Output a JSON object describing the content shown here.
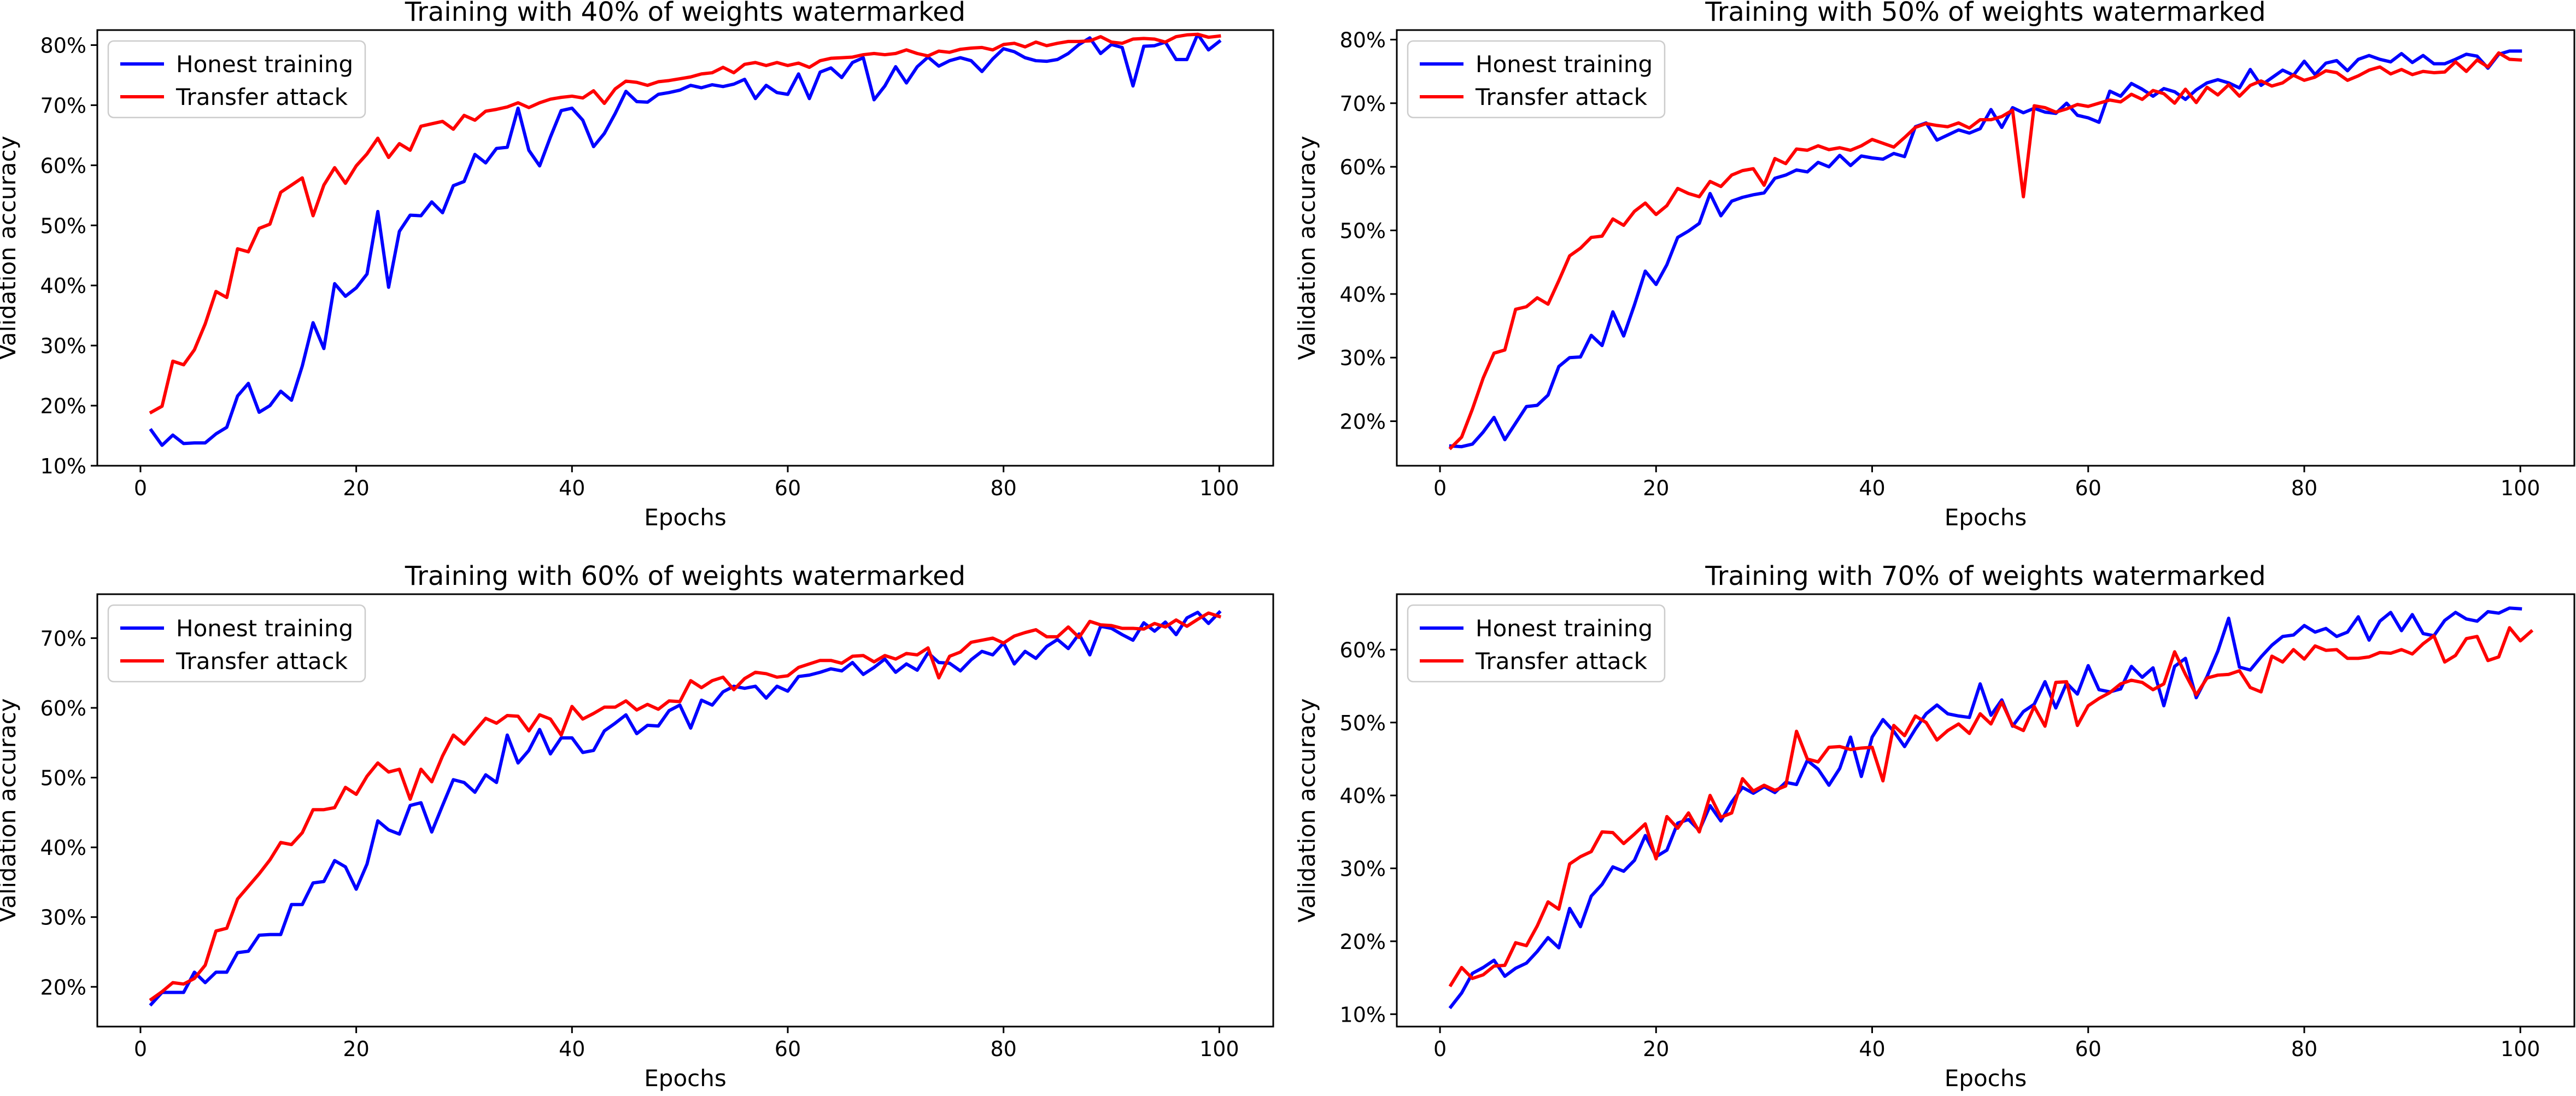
{
  "chart_data": [
    {
      "type": "line",
      "title": "Training with 40% of weights watermarked",
      "xlabel": "Epochs",
      "ylabel": "Validation accuracy",
      "xlim": [
        -4,
        105
      ],
      "ylim": [
        10,
        82.5
      ],
      "xticks": [
        0,
        20,
        40,
        60,
        80,
        100
      ],
      "xtick_labels": [
        "0",
        "20",
        "40",
        "60",
        "80",
        "100"
      ],
      "yticks": [
        10,
        20,
        30,
        40,
        50,
        60,
        70,
        80
      ],
      "ytick_labels": [
        "10%",
        "20%",
        "30%",
        "40%",
        "50%",
        "60%",
        "70%",
        "80%"
      ],
      "grid": false,
      "legend_position": "upper-left",
      "x_start": 1,
      "series": [
        {
          "name": "Honest training",
          "color": "#0000ff",
          "values": [
            15.9,
            13.4,
            15.1,
            13.7,
            13.8,
            13.8,
            15.3,
            16.4,
            21.6,
            23.7,
            18.9,
            20.0,
            22.4,
            20.9,
            26.6,
            33.8,
            29.5,
            40.3,
            38.2,
            39.6,
            41.9,
            52.3,
            39.7,
            49.0,
            51.7,
            51.6,
            53.9,
            52.1,
            56.6,
            57.3,
            61.8,
            60.4,
            62.8,
            63.0,
            69.5,
            62.5,
            59.9,
            64.7,
            69.1,
            69.5,
            67.5,
            63.1,
            65.3,
            68.6,
            72.3,
            70.6,
            70.5,
            71.8,
            72.1,
            72.5,
            73.3,
            72.9,
            73.4,
            73.1,
            73.5,
            74.3,
            71.1,
            73.3,
            72.1,
            71.8,
            75.2,
            71.1,
            75.5,
            76.2,
            74.6,
            77.1,
            77.9,
            70.9,
            73.2,
            76.4,
            73.7,
            76.4,
            78.0,
            76.5,
            77.4,
            77.9,
            77.4,
            75.6,
            77.7,
            79.4,
            78.9,
            77.9,
            77.4,
            77.3,
            77.6,
            78.6,
            80.1,
            81.2,
            78.6,
            80.1,
            79.6,
            73.2,
            79.8,
            79.9,
            80.5,
            77.6,
            77.6,
            81.8,
            79.2,
            80.6
          ]
        },
        {
          "name": "Transfer attack",
          "color": "#ff0000",
          "values": [
            18.9,
            19.9,
            27.4,
            26.8,
            29.3,
            33.6,
            39.0,
            38.0,
            46.1,
            45.6,
            49.5,
            50.2,
            55.5,
            56.7,
            57.9,
            51.6,
            56.7,
            59.6,
            57.0,
            59.9,
            61.9,
            64.5,
            61.3,
            63.6,
            62.5,
            66.5,
            66.9,
            67.3,
            66.0,
            68.3,
            67.5,
            69.0,
            69.3,
            69.7,
            70.4,
            69.6,
            70.4,
            71.0,
            71.3,
            71.5,
            71.2,
            72.4,
            70.3,
            72.7,
            74.0,
            73.8,
            73.3,
            73.9,
            74.1,
            74.4,
            74.7,
            75.2,
            75.4,
            76.3,
            75.4,
            76.8,
            77.1,
            76.6,
            77.1,
            76.6,
            77.0,
            76.3,
            77.4,
            77.8,
            77.9,
            78.0,
            78.4,
            78.6,
            78.4,
            78.6,
            79.2,
            78.6,
            78.2,
            79.0,
            78.8,
            79.3,
            79.5,
            79.6,
            79.2,
            80.1,
            80.3,
            79.7,
            80.5,
            79.9,
            80.3,
            80.6,
            80.6,
            80.7,
            81.4,
            80.5,
            80.3,
            81.0,
            81.1,
            81.0,
            80.5,
            81.4,
            81.7,
            81.8,
            81.3,
            81.5
          ]
        }
      ]
    },
    {
      "type": "line",
      "title": "Training with 50% of weights watermarked",
      "xlabel": "Epochs",
      "ylabel": "Validation accuracy",
      "xlim": [
        -4,
        105
      ],
      "ylim": [
        13,
        81.5
      ],
      "xticks": [
        0,
        20,
        40,
        60,
        80,
        100
      ],
      "xtick_labels": [
        "0",
        "20",
        "40",
        "60",
        "80",
        "100"
      ],
      "yticks": [
        20,
        30,
        40,
        50,
        60,
        70,
        80
      ],
      "ytick_labels": [
        "20%",
        "30%",
        "40%",
        "50%",
        "60%",
        "70%",
        "80%"
      ],
      "grid": false,
      "legend_position": "upper-left",
      "x_start": 1,
      "series": [
        {
          "name": "Honest training",
          "color": "#0000ff",
          "values": [
            16.1,
            16.0,
            16.4,
            18.3,
            20.6,
            17.1,
            19.7,
            22.3,
            22.5,
            24.1,
            28.6,
            30.0,
            30.1,
            33.5,
            31.9,
            37.2,
            33.4,
            38.3,
            43.6,
            41.5,
            44.6,
            48.9,
            49.9,
            51.1,
            55.8,
            52.3,
            54.6,
            55.2,
            55.6,
            55.9,
            58.2,
            58.7,
            59.5,
            59.2,
            60.7,
            60.0,
            61.8,
            60.2,
            61.7,
            61.4,
            61.2,
            62.1,
            61.6,
            66.3,
            66.9,
            64.2,
            65.0,
            65.8,
            65.3,
            66.0,
            69.0,
            66.2,
            69.3,
            68.5,
            69.2,
            68.6,
            68.4,
            70.0,
            68.1,
            67.7,
            67.0,
            71.9,
            71.1,
            73.1,
            72.2,
            71.1,
            72.3,
            71.8,
            70.6,
            72.1,
            73.2,
            73.7,
            73.2,
            72.4,
            75.3,
            72.8,
            74.0,
            75.2,
            74.4,
            76.6,
            74.5,
            76.3,
            76.7,
            75.1,
            76.9,
            77.5,
            76.9,
            76.5,
            77.8,
            76.4,
            77.5,
            76.2,
            76.2,
            76.9,
            77.7,
            77.4,
            75.5,
            77.7,
            78.2,
            78.2
          ]
        },
        {
          "name": "Transfer attack",
          "color": "#ff0000",
          "values": [
            15.8,
            17.5,
            21.9,
            26.8,
            30.7,
            31.2,
            37.6,
            38.0,
            39.4,
            38.4,
            42.1,
            46.0,
            47.2,
            48.9,
            49.1,
            51.8,
            50.8,
            53.0,
            54.3,
            52.5,
            53.9,
            56.6,
            55.8,
            55.3,
            57.7,
            56.9,
            58.7,
            59.4,
            59.7,
            57.1,
            61.3,
            60.5,
            62.8,
            62.6,
            63.3,
            62.7,
            63.0,
            62.6,
            63.3,
            64.3,
            63.7,
            63.1,
            64.6,
            66.2,
            66.8,
            66.5,
            66.3,
            66.9,
            66.1,
            67.4,
            67.4,
            67.9,
            68.9,
            55.3,
            69.6,
            69.3,
            68.6,
            69.1,
            69.8,
            69.5,
            70.0,
            70.5,
            70.2,
            71.4,
            70.6,
            72.0,
            71.5,
            70.0,
            72.2,
            70.1,
            72.5,
            71.3,
            72.9,
            71.1,
            72.8,
            73.5,
            72.7,
            73.2,
            74.4,
            73.6,
            74.1,
            75.1,
            74.8,
            73.6,
            74.3,
            75.2,
            75.7,
            74.6,
            75.3,
            74.5,
            75.0,
            74.8,
            74.9,
            76.5,
            75.0,
            76.8,
            75.7,
            77.9,
            76.9,
            76.8
          ]
        }
      ]
    },
    {
      "type": "line",
      "title": "Training with 60% of weights watermarked",
      "xlabel": "Epochs",
      "ylabel": "Validation accuracy",
      "xlim": [
        -4,
        105
      ],
      "ylim": [
        14.3,
        76.3
      ],
      "xticks": [
        0,
        20,
        40,
        60,
        80,
        100
      ],
      "xtick_labels": [
        "0",
        "20",
        "40",
        "60",
        "80",
        "100"
      ],
      "yticks": [
        20,
        30,
        40,
        50,
        60,
        70
      ],
      "ytick_labels": [
        "20%",
        "30%",
        "40%",
        "50%",
        "60%",
        "70%"
      ],
      "grid": false,
      "legend_position": "upper-left",
      "x_start": 1,
      "series": [
        {
          "name": "Honest training",
          "color": "#0000ff",
          "values": [
            17.5,
            19.2,
            19.2,
            19.2,
            22.1,
            20.6,
            22.1,
            22.1,
            24.9,
            25.1,
            27.4,
            27.5,
            27.5,
            31.8,
            31.8,
            34.9,
            35.1,
            38.1,
            37.2,
            34.0,
            37.6,
            43.8,
            42.5,
            41.9,
            46.0,
            46.4,
            42.2,
            46.0,
            49.7,
            49.3,
            47.9,
            50.4,
            49.3,
            56.1,
            52.1,
            53.9,
            56.9,
            53.4,
            55.7,
            55.7,
            53.6,
            53.9,
            56.7,
            57.8,
            59.0,
            56.3,
            57.5,
            57.4,
            59.6,
            60.4,
            57.1,
            61.1,
            60.4,
            62.3,
            63.1,
            62.8,
            63.1,
            61.4,
            63.1,
            62.4,
            64.5,
            64.7,
            65.1,
            65.6,
            65.3,
            66.5,
            64.8,
            65.8,
            67.0,
            65.1,
            66.3,
            65.4,
            67.9,
            66.5,
            66.4,
            65.3,
            66.9,
            68.1,
            67.6,
            69.3,
            66.3,
            68.1,
            67.1,
            68.8,
            69.8,
            68.5,
            70.6,
            67.6,
            71.7,
            71.4,
            70.5,
            69.7,
            72.2,
            71.0,
            72.3,
            70.5,
            72.9,
            73.7,
            72.1,
            73.7
          ]
        },
        {
          "name": "Transfer attack",
          "color": "#ff0000",
          "values": [
            18.2,
            19.3,
            20.6,
            20.4,
            21.2,
            23.1,
            28.0,
            28.4,
            32.6,
            34.4,
            36.2,
            38.2,
            40.7,
            40.4,
            42.1,
            45.4,
            45.4,
            45.7,
            48.6,
            47.6,
            50.2,
            52.1,
            50.8,
            51.2,
            46.9,
            51.2,
            49.4,
            53.1,
            56.1,
            54.8,
            56.7,
            58.5,
            57.8,
            58.9,
            58.8,
            56.7,
            59.0,
            58.4,
            56.1,
            60.2,
            58.4,
            59.2,
            60.1,
            60.1,
            61.0,
            59.7,
            60.5,
            59.8,
            61.0,
            60.9,
            63.9,
            62.9,
            63.9,
            64.4,
            62.6,
            64.2,
            65.1,
            64.9,
            64.4,
            64.6,
            65.8,
            66.3,
            66.8,
            66.8,
            66.4,
            67.4,
            67.5,
            66.6,
            67.5,
            67.0,
            67.8,
            67.6,
            68.6,
            64.3,
            67.4,
            68.0,
            69.4,
            69.7,
            70.0,
            69.3,
            70.3,
            70.8,
            71.2,
            70.2,
            70.2,
            71.6,
            70.1,
            72.4,
            71.9,
            71.8,
            71.4,
            71.4,
            71.3,
            72.1,
            71.6,
            72.6,
            71.7,
            72.7,
            73.6,
            73.1
          ]
        }
      ]
    },
    {
      "type": "line",
      "title": "Training with 70% of weights watermarked",
      "xlabel": "Epochs",
      "ylabel": "Validation accuracy",
      "xlim": [
        -4,
        105
      ],
      "ylim": [
        8.3,
        67.6
      ],
      "xticks": [
        0,
        20,
        40,
        60,
        80,
        100
      ],
      "xtick_labels": [
        "0",
        "20",
        "40",
        "60",
        "80",
        "100"
      ],
      "yticks": [
        10,
        20,
        30,
        40,
        50,
        60
      ],
      "ytick_labels": [
        "10%",
        "20%",
        "30%",
        "40%",
        "50%",
        "60%"
      ],
      "grid": false,
      "legend_position": "upper-left",
      "x_start": 1,
      "series": [
        {
          "name": "Honest training",
          "color": "#0000ff",
          "values": [
            11.0,
            12.9,
            15.6,
            16.4,
            17.4,
            15.2,
            16.3,
            17.0,
            18.6,
            20.5,
            19.1,
            24.5,
            22.0,
            26.2,
            27.8,
            30.2,
            29.6,
            31.1,
            34.5,
            31.6,
            32.5,
            36.2,
            36.7,
            35.2,
            38.6,
            36.5,
            39.1,
            41.1,
            40.3,
            41.2,
            40.4,
            41.8,
            41.5,
            44.8,
            43.6,
            41.4,
            43.7,
            48.0,
            42.6,
            48.0,
            50.4,
            48.8,
            46.7,
            49.1,
            51.2,
            52.4,
            51.2,
            50.9,
            50.7,
            55.3,
            51.0,
            53.1,
            49.5,
            51.5,
            52.5,
            55.6,
            52.0,
            55.4,
            53.9,
            57.8,
            54.5,
            54.2,
            54.6,
            57.7,
            56.2,
            57.5,
            52.3,
            57.7,
            58.8,
            53.4,
            56.3,
            59.8,
            64.3,
            57.6,
            57.2,
            59.0,
            60.6,
            61.8,
            62.0,
            63.3,
            62.4,
            62.9,
            61.8,
            62.4,
            64.5,
            61.3,
            63.9,
            65.1,
            62.6,
            64.8,
            62.2,
            61.9,
            64.0,
            65.1,
            64.2,
            63.9,
            65.2,
            65.0,
            65.7,
            65.6
          ]
        },
        {
          "name": "Transfer attack",
          "color": "#ff0000",
          "values": [
            14.0,
            16.4,
            14.9,
            15.4,
            16.6,
            16.7,
            19.8,
            19.4,
            22.1,
            25.4,
            24.4,
            30.6,
            31.6,
            32.3,
            35.0,
            34.9,
            33.4,
            34.7,
            36.1,
            31.3,
            37.1,
            35.5,
            37.6,
            35.0,
            40.0,
            37.0,
            37.6,
            42.3,
            40.6,
            41.4,
            40.7,
            41.3,
            48.8,
            45.0,
            44.6,
            46.6,
            46.7,
            46.3,
            46.5,
            46.6,
            42.0,
            49.6,
            48.2,
            50.9,
            50.0,
            47.6,
            48.9,
            49.8,
            48.5,
            51.2,
            49.8,
            52.8,
            49.6,
            48.9,
            52.2,
            49.5,
            55.5,
            55.6,
            49.6,
            52.3,
            53.3,
            54.1,
            55.3,
            55.8,
            55.5,
            54.5,
            55.3,
            59.7,
            56.6,
            53.8,
            56.1,
            56.5,
            56.6,
            57.1,
            54.8,
            54.2,
            59.1,
            58.3,
            60.0,
            58.7,
            60.5,
            59.9,
            60.0,
            58.8,
            58.8,
            59.0,
            59.6,
            59.5,
            60.0,
            59.4,
            60.8,
            61.9,
            58.3,
            59.2,
            61.5,
            61.8,
            58.5,
            59.0,
            63.0,
            61.2,
            62.5
          ]
        }
      ]
    }
  ]
}
